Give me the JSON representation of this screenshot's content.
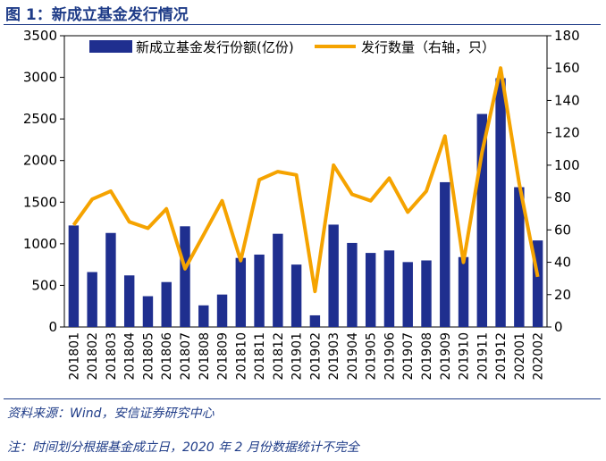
{
  "figure": {
    "title": "图 1：新成立基金发行情况",
    "source": "资料来源：Wind，安信证券研究中心",
    "note": "注：时间划分根据基金成立日，2020 年 2 月份数据统计不完全"
  },
  "chart_data": {
    "type": "bar+line",
    "title": "新成立基金发行情况",
    "categories": [
      "201801",
      "201802",
      "201803",
      "201804",
      "201805",
      "201806",
      "201807",
      "201808",
      "201809",
      "201810",
      "201811",
      "201812",
      "201901",
      "201902",
      "201903",
      "201904",
      "201905",
      "201906",
      "201907",
      "201908",
      "201909",
      "201910",
      "201911",
      "201912",
      "202001",
      "202002"
    ],
    "series": [
      {
        "name": "新成立基金发行份额(亿份)",
        "type": "bar",
        "axis": "left",
        "color": "#1f2f8f",
        "values": [
          1220,
          660,
          1130,
          620,
          370,
          540,
          1210,
          260,
          390,
          830,
          870,
          1120,
          750,
          140,
          1230,
          1010,
          890,
          920,
          780,
          800,
          1740,
          840,
          2560,
          2990,
          1680,
          1040
        ]
      },
      {
        "name": "发行数量（右轴，只）",
        "type": "line",
        "axis": "right",
        "color": "#f5a300",
        "values": [
          63,
          79,
          84,
          65,
          61,
          73,
          36,
          57,
          78,
          41,
          91,
          96,
          94,
          22,
          100,
          82,
          78,
          92,
          71,
          84,
          118,
          40,
          108,
          160,
          89,
          31
        ]
      }
    ],
    "y_left": {
      "min": 0,
      "max": 3500,
      "ticks": [
        "0",
        "500",
        "1000",
        "1500",
        "2000",
        "2500",
        "3000",
        "3500"
      ]
    },
    "y_right": {
      "min": 0,
      "max": 180,
      "ticks": [
        "0",
        "20",
        "40",
        "60",
        "80",
        "100",
        "120",
        "140",
        "160",
        "180"
      ]
    },
    "legend_position": "top"
  }
}
